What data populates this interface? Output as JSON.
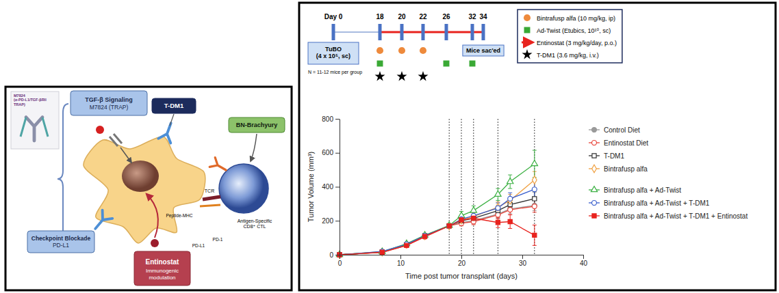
{
  "diagram": {
    "antibody_label": "M7824 (α-PD-L1/TGF-βRII TRAP)",
    "boxes": [
      {
        "title": "TGF-β Signaling",
        "subtitle": "M7824 (TRAP)"
      },
      {
        "title": "T-DM1"
      },
      {
        "title": "BN-Brachyury"
      },
      {
        "title": "Checkpoint Blockade",
        "subtitle": "PD-L1"
      },
      {
        "title": "Entinostat",
        "subtitle": "Immunogenic modulation"
      }
    ],
    "labels": [
      "TCR",
      "Antigen-Specific CD8⁺ CTL",
      "Peptide-MHC",
      "PD-1",
      "PD-L1"
    ]
  },
  "schedule": {
    "days": [
      {
        "value": 0,
        "label": "Day 0"
      },
      18,
      20,
      22,
      26,
      32,
      34
    ],
    "tumor_label": "TuBO (4 x 10⁵, sc)",
    "group_size": "N = 11-12 mice per group",
    "end_label": "Mice sac'ed",
    "treatments": [
      {
        "name": "Bintrafusp alfa (10 mg/kg, ip)",
        "marker": "circle",
        "color": "#ee8a3c",
        "days": [
          18,
          20,
          22
        ]
      },
      {
        "name": "Ad-Twist (Etubics, 10¹⁰, sc)",
        "marker": "square",
        "color": "#3aa935",
        "days": [
          18,
          26,
          32
        ]
      },
      {
        "name": "Entinostat (3 mg/kg/day, p.o.)",
        "marker": "arrow",
        "color": "#e8231e",
        "days": [
          18,
          34
        ]
      },
      {
        "name": "T-DM1 (3.6 mg/kg, i.v.)",
        "marker": "star",
        "color": "#000000",
        "days": [
          18,
          20,
          22
        ]
      }
    ]
  },
  "chart_data": {
    "type": "line",
    "xlabel": "Time post tumor transplant (days)",
    "ylabel": "Tumor Volume (mm³)",
    "x": [
      0,
      7,
      11,
      14,
      18,
      20,
      22,
      26,
      28,
      32
    ],
    "xlim": [
      0,
      40
    ],
    "xticks": [
      0,
      10,
      20,
      30,
      40
    ],
    "ylim": [
      0,
      800
    ],
    "yticks": [
      0,
      200,
      400,
      600,
      800
    ],
    "grid": false,
    "legend": "right",
    "vlines": [
      18,
      20,
      22,
      26,
      32
    ],
    "series": [
      {
        "name": "Control Diet",
        "color": "#9a9a9a",
        "marker": "circle",
        "values": [
          0,
          15,
          60,
          110,
          170,
          190,
          200,
          240,
          270,
          290
        ],
        "errors": [
          0,
          3,
          6,
          8,
          10,
          15,
          18,
          25,
          28,
          30
        ]
      },
      {
        "name": "Entinostat Diet",
        "color": "#e8443a",
        "marker": "open-circle",
        "values": [
          0,
          14,
          55,
          105,
          170,
          185,
          195,
          235,
          265,
          285
        ],
        "errors": [
          0,
          3,
          6,
          8,
          10,
          15,
          18,
          25,
          30,
          35
        ]
      },
      {
        "name": "T-DM1",
        "color": "#333333",
        "marker": "open-square",
        "values": [
          0,
          16,
          60,
          112,
          170,
          200,
          215,
          260,
          295,
          330
        ],
        "errors": [
          0,
          3,
          6,
          8,
          10,
          18,
          20,
          25,
          30,
          40
        ]
      },
      {
        "name": "Bintrafusp alfa",
        "color": "#f0a040",
        "marker": "open-diamond",
        "values": [
          0,
          16,
          62,
          112,
          170,
          205,
          225,
          280,
          320,
          440
        ],
        "errors": [
          0,
          3,
          6,
          8,
          10,
          20,
          22,
          30,
          35,
          50
        ]
      },
      {
        "name": "Bintrafusp alfa + Ad-Twist",
        "color": "#3cb043",
        "marker": "open-triangle",
        "values": [
          0,
          18,
          65,
          115,
          172,
          230,
          260,
          355,
          430,
          535
        ],
        "errors": [
          0,
          4,
          7,
          9,
          12,
          25,
          28,
          35,
          40,
          80
        ]
      },
      {
        "name": "Bintrafusp alfa + Ad-Twist + T-DM1",
        "color": "#3a5fcd",
        "marker": "open-circle",
        "values": [
          0,
          20,
          62,
          112,
          170,
          210,
          230,
          275,
          330,
          385
        ],
        "errors": [
          0,
          4,
          6,
          8,
          10,
          20,
          22,
          30,
          35,
          50
        ]
      },
      {
        "name": "Bintrafusp alfa + Ad-Twist + T-DM1 + Entinostat",
        "color": "#e8231e",
        "marker": "square",
        "values": [
          0,
          15,
          55,
          108,
          170,
          205,
          215,
          190,
          195,
          115
        ],
        "errors": [
          0,
          3,
          6,
          8,
          10,
          20,
          25,
          30,
          40,
          60
        ]
      }
    ]
  }
}
